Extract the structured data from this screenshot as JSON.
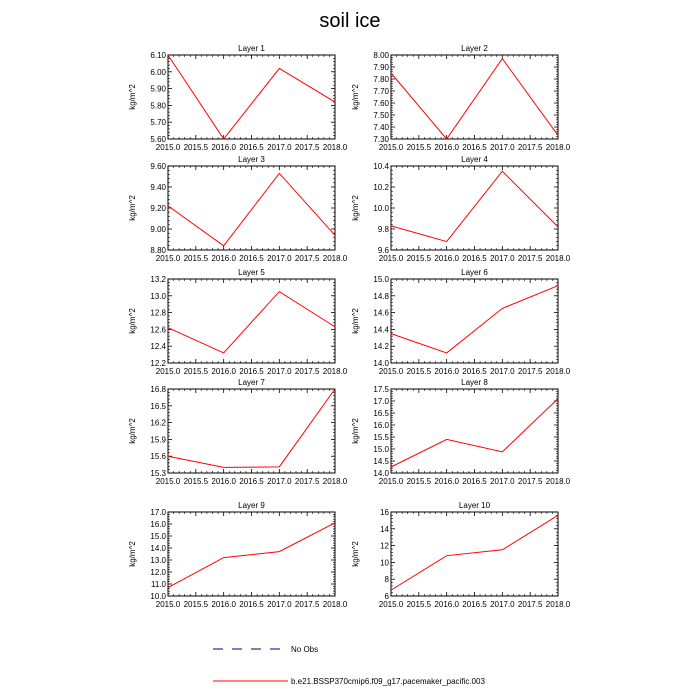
{
  "title": "soil ice",
  "legend": {
    "items": [
      {
        "label": "No Obs",
        "color": "#000080",
        "dash": "dashed"
      },
      {
        "label": "b.e21.BSSP370cmip6.f09_g17.pacemaker_pacific.003",
        "color": "#ff0000",
        "dash": "solid"
      }
    ]
  },
  "chart_data": [
    {
      "type": "line",
      "title": "Layer 1",
      "ylabel": "kg/m^2",
      "x": [
        2015,
        2016,
        2017,
        2018
      ],
      "xticks": [
        "2015.0",
        "2015.5",
        "2016.0",
        "2016.5",
        "2017.0",
        "2017.5",
        "2018.0"
      ],
      "ylim": [
        5.6,
        6.1
      ],
      "yticks": [
        "5.60",
        "5.70",
        "5.80",
        "5.90",
        "6.00",
        "6.10"
      ],
      "series": [
        {
          "values": [
            6.1,
            5.6,
            6.02,
            5.82
          ],
          "color": "#ff0000"
        }
      ]
    },
    {
      "type": "line",
      "title": "Layer 2",
      "ylabel": "kg/m^2",
      "x": [
        2015,
        2016,
        2017,
        2018
      ],
      "xticks": [
        "2015.0",
        "2015.5",
        "2016.0",
        "2016.5",
        "2017.0",
        "2017.5",
        "2018.0"
      ],
      "ylim": [
        7.3,
        8.0
      ],
      "yticks": [
        "7.30",
        "7.40",
        "7.50",
        "7.60",
        "7.70",
        "7.80",
        "7.90",
        "8.00"
      ],
      "series": [
        {
          "values": [
            7.85,
            7.3,
            7.97,
            7.33
          ],
          "color": "#ff0000"
        }
      ]
    },
    {
      "type": "line",
      "title": "Layer 3",
      "ylabel": "kg/m^2",
      "x": [
        2015,
        2016,
        2017,
        2018
      ],
      "xticks": [
        "2015.0",
        "2015.5",
        "2016.0",
        "2016.5",
        "2017.0",
        "2017.5",
        "2018.0"
      ],
      "ylim": [
        8.8,
        9.6
      ],
      "yticks": [
        "8.80",
        "9.00",
        "9.20",
        "9.40",
        "9.60"
      ],
      "series": [
        {
          "values": [
            9.22,
            8.84,
            9.53,
            8.94
          ],
          "color": "#ff0000"
        }
      ]
    },
    {
      "type": "line",
      "title": "Layer 4",
      "ylabel": "kg/m^2",
      "x": [
        2015,
        2016,
        2017,
        2018
      ],
      "xticks": [
        "2015.0",
        "2015.5",
        "2016.0",
        "2016.5",
        "2017.0",
        "2017.5",
        "2018.0"
      ],
      "ylim": [
        9.6,
        10.4
      ],
      "yticks": [
        "9.6",
        "9.8",
        "10.0",
        "10.2",
        "10.4"
      ],
      "series": [
        {
          "values": [
            9.83,
            9.68,
            10.35,
            9.82
          ],
          "color": "#ff0000"
        }
      ]
    },
    {
      "type": "line",
      "title": "Layer 5",
      "ylabel": "kg/m^2",
      "x": [
        2015,
        2016,
        2017,
        2018
      ],
      "xticks": [
        "2015.0",
        "2015.5",
        "2016.0",
        "2016.5",
        "2017.0",
        "2017.5",
        "2018.0"
      ],
      "ylim": [
        12.2,
        13.2
      ],
      "yticks": [
        "12.2",
        "12.4",
        "12.6",
        "12.8",
        "13.0",
        "13.2"
      ],
      "series": [
        {
          "values": [
            12.62,
            12.32,
            13.05,
            12.63
          ],
          "color": "#ff0000"
        }
      ]
    },
    {
      "type": "line",
      "title": "Layer 6",
      "ylabel": "kg/m^2",
      "x": [
        2015,
        2016,
        2017,
        2018
      ],
      "xticks": [
        "2015.0",
        "2015.5",
        "2016.0",
        "2016.5",
        "2017.0",
        "2017.5",
        "2018.0"
      ],
      "ylim": [
        14.0,
        15.0
      ],
      "yticks": [
        "14.0",
        "14.2",
        "14.4",
        "14.6",
        "14.8",
        "15.0"
      ],
      "series": [
        {
          "values": [
            14.35,
            14.12,
            14.65,
            14.92
          ],
          "color": "#ff0000"
        }
      ]
    },
    {
      "type": "line",
      "title": "Layer 7",
      "ylabel": "kg/m^2",
      "x": [
        2015,
        2016,
        2017,
        2018
      ],
      "xticks": [
        "2015.0",
        "2015.5",
        "2016.0",
        "2016.5",
        "2017.0",
        "2017.5",
        "2018.0"
      ],
      "ylim": [
        15.3,
        16.8
      ],
      "yticks": [
        "15.3",
        "15.6",
        "15.9",
        "16.2",
        "16.5",
        "16.8"
      ],
      "series": [
        {
          "values": [
            15.6,
            15.4,
            15.41,
            16.8
          ],
          "color": "#ff0000"
        }
      ]
    },
    {
      "type": "line",
      "title": "Layer 8",
      "ylabel": "kg/m^2",
      "x": [
        2015,
        2016,
        2017,
        2018
      ],
      "xticks": [
        "2015.0",
        "2015.5",
        "2016.0",
        "2016.5",
        "2017.0",
        "2017.5",
        "2018.0"
      ],
      "ylim": [
        14.0,
        17.5
      ],
      "yticks": [
        "14.0",
        "14.5",
        "15.0",
        "15.5",
        "16.0",
        "16.5",
        "17.0",
        "17.5"
      ],
      "series": [
        {
          "values": [
            14.25,
            15.4,
            14.88,
            17.1
          ],
          "color": "#ff0000"
        }
      ]
    },
    {
      "type": "line",
      "title": "Layer 9",
      "ylabel": "kg/m^2",
      "x": [
        2015,
        2016,
        2017,
        2018
      ],
      "xticks": [
        "2015.0",
        "2015.5",
        "2016.0",
        "2016.5",
        "2017.0",
        "2017.5",
        "2018.0"
      ],
      "ylim": [
        10.0,
        17.0
      ],
      "yticks": [
        "10.0",
        "11.0",
        "12.0",
        "13.0",
        "14.0",
        "15.0",
        "16.0",
        "17.0"
      ],
      "series": [
        {
          "values": [
            10.7,
            13.2,
            13.7,
            16.1
          ],
          "color": "#ff0000"
        }
      ]
    },
    {
      "type": "line",
      "title": "Layer 10",
      "ylabel": "kg/m^2",
      "x": [
        2015,
        2016,
        2017,
        2018
      ],
      "xticks": [
        "2015.0",
        "2015.5",
        "2016.0",
        "2016.5",
        "2017.0",
        "2017.5",
        "2018.0"
      ],
      "ylim": [
        6,
        16
      ],
      "yticks": [
        "6",
        "8",
        "10",
        "12",
        "14",
        "16"
      ],
      "series": [
        {
          "values": [
            6.7,
            10.8,
            11.5,
            15.6
          ],
          "color": "#ff0000"
        }
      ]
    }
  ]
}
